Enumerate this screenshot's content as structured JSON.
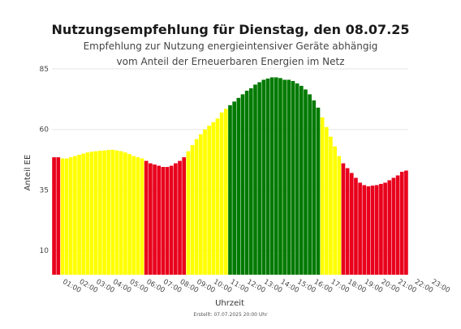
{
  "chart_data": {
    "type": "bar",
    "title": "Nutzungsempfehlung für Dienstag, den 08.07.25",
    "subtitle_line1": "Empfehlung zur Nutzung energieintensiver Geräte abhängig",
    "subtitle_line2": "vom Anteil der Erneuerbaren Energien im Netz",
    "xlabel": "Uhrzeit",
    "ylabel": "Anteil EE",
    "footer": "Erstellt: 07.07.2025 20:00 Uhr",
    "ylim": [
      0,
      85
    ],
    "yticks": [
      10,
      35,
      60,
      85
    ],
    "grid": true,
    "colors": {
      "red": "#e8001c",
      "yellow": "#ffff00",
      "green": "#007a00"
    },
    "xtick_labels": [
      "01:00",
      "02:00",
      "03:00",
      "04:00",
      "05:00",
      "06:00",
      "07:00",
      "08:00",
      "09:00",
      "10:00",
      "11:00",
      "12:00",
      "13:00",
      "14:00",
      "15:00",
      "16:00",
      "17:00",
      "18:00",
      "19:00",
      "20:00",
      "21:00",
      "22:00",
      "23:00"
    ],
    "x_start": "00:00",
    "x_step_minutes": 15,
    "values": [
      48.5,
      48.5,
      48.0,
      48.0,
      48.5,
      49.0,
      49.5,
      50.0,
      50.5,
      50.8,
      51.0,
      51.2,
      51.3,
      51.5,
      51.6,
      51.3,
      51.0,
      50.5,
      49.8,
      49.0,
      48.5,
      48.0,
      47.0,
      46.0,
      45.5,
      45.0,
      44.5,
      44.5,
      45.0,
      46.0,
      47.0,
      48.5,
      51.0,
      53.5,
      56.0,
      58.0,
      60.0,
      61.5,
      63.0,
      64.5,
      67.0,
      68.5,
      70.0,
      71.5,
      73.0,
      74.5,
      76.0,
      77.0,
      78.5,
      79.5,
      80.5,
      81.0,
      81.5,
      81.5,
      81.2,
      80.5,
      80.5,
      80.0,
      79.0,
      78.0,
      76.5,
      74.5,
      72.0,
      69.0,
      65.0,
      61.0,
      57.0,
      53.0,
      49.0,
      46.0,
      44.0,
      42.0,
      40.0,
      38.0,
      37.0,
      36.5,
      36.8,
      37.0,
      37.5,
      38.0,
      39.0,
      40.0,
      41.0,
      42.5,
      43.0
    ],
    "categories": [
      "r",
      "r",
      "y",
      "y",
      "y",
      "y",
      "y",
      "y",
      "y",
      "y",
      "y",
      "y",
      "y",
      "y",
      "y",
      "y",
      "y",
      "y",
      "y",
      "y",
      "y",
      "y",
      "r",
      "r",
      "r",
      "r",
      "r",
      "r",
      "r",
      "r",
      "r",
      "r",
      "y",
      "y",
      "y",
      "y",
      "y",
      "y",
      "y",
      "y",
      "y",
      "y",
      "g",
      "g",
      "g",
      "g",
      "g",
      "g",
      "g",
      "g",
      "g",
      "g",
      "g",
      "g",
      "g",
      "g",
      "g",
      "g",
      "g",
      "g",
      "g",
      "g",
      "g",
      "g",
      "y",
      "y",
      "y",
      "y",
      "y",
      "r",
      "r",
      "r",
      "r",
      "r",
      "r",
      "r",
      "r",
      "r",
      "r",
      "r",
      "r",
      "r",
      "r",
      "r",
      "r"
    ]
  }
}
